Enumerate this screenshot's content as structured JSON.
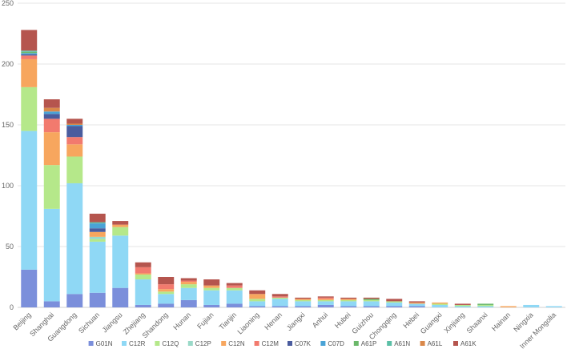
{
  "chart_data": {
    "type": "bar",
    "stacked": true,
    "title": "",
    "xlabel": "",
    "ylabel": "",
    "ylim": [
      0,
      250
    ],
    "yticks": [
      0,
      50,
      100,
      150,
      200,
      250
    ],
    "grid": true,
    "legend_position": "bottom",
    "categories": [
      "Beijing",
      "Shanghai",
      "Guangdong",
      "Sichuan",
      "Jiangsu",
      "Zhejiang",
      "Shandong",
      "Hunan",
      "Fujian",
      "Tianjin",
      "Liaoning",
      "Henan",
      "Jiangxi",
      "Anhui",
      "Hubei",
      "Guizhou",
      "Chongqing",
      "Hebei",
      "Guangxi",
      "Xinjiang",
      "Shaanxi",
      "Hainan",
      "Ningxia",
      "Inner Mongolia"
    ],
    "series": [
      {
        "name": "G01N",
        "color": "#7b8fdb",
        "values": [
          31,
          5,
          11,
          12,
          16,
          2,
          3,
          6,
          2,
          3,
          1,
          1,
          1,
          2,
          1,
          1,
          1,
          1,
          0,
          0,
          0,
          0,
          0,
          0
        ]
      },
      {
        "name": "C12R",
        "color": "#8fd8f5",
        "values": [
          114,
          76,
          91,
          42,
          43,
          21,
          8,
          10,
          12,
          11,
          4,
          6,
          4,
          3,
          4,
          4,
          3,
          2,
          2,
          1,
          1,
          0,
          2,
          1
        ]
      },
      {
        "name": "C12Q",
        "color": "#b5e88a",
        "values": [
          36,
          36,
          22,
          2,
          7,
          4,
          2,
          3,
          2,
          2,
          2,
          1,
          1,
          1,
          1,
          1,
          1,
          0,
          1,
          1,
          1,
          0,
          0,
          0
        ]
      },
      {
        "name": "C12P",
        "color": "#9ad9c8",
        "values": [
          0,
          0,
          0,
          2,
          0,
          0,
          0,
          0,
          0,
          0,
          0,
          0,
          0,
          0,
          0,
          0,
          0,
          0,
          0,
          0,
          0,
          0,
          0,
          0
        ]
      },
      {
        "name": "C12N",
        "color": "#f7a65e",
        "values": [
          23,
          27,
          10,
          4,
          2,
          1,
          2,
          2,
          2,
          0,
          4,
          0,
          1,
          1,
          1,
          0,
          0,
          1,
          1,
          0,
          0,
          1,
          0,
          0
        ]
      },
      {
        "name": "C12M",
        "color": "#f27a6e",
        "values": [
          3,
          11,
          6,
          0,
          0,
          5,
          4,
          1,
          0,
          2,
          0,
          1,
          0,
          1,
          0,
          0,
          0,
          0,
          0,
          0,
          0,
          0,
          0,
          0
        ]
      },
      {
        "name": "C07K",
        "color": "#4a5c9e",
        "values": [
          1,
          4,
          9,
          3,
          0,
          0,
          0,
          0,
          0,
          0,
          0,
          0,
          0,
          0,
          0,
          0,
          0,
          0,
          0,
          0,
          0,
          0,
          0,
          0
        ]
      },
      {
        "name": "C07D",
        "color": "#4aa3d6",
        "values": [
          1,
          2,
          1,
          4,
          0,
          0,
          0,
          0,
          0,
          0,
          0,
          0,
          0,
          0,
          0,
          0,
          0,
          0,
          0,
          0,
          0,
          0,
          0,
          0
        ]
      },
      {
        "name": "A61P",
        "color": "#6bb86a",
        "values": [
          1,
          0,
          0,
          0,
          0,
          0,
          0,
          0,
          0,
          0,
          0,
          0,
          0,
          0,
          0,
          1,
          0,
          0,
          0,
          0,
          1,
          0,
          0,
          0
        ]
      },
      {
        "name": "A61N",
        "color": "#5bbfa6",
        "values": [
          1,
          0,
          0,
          1,
          0,
          0,
          0,
          0,
          0,
          0,
          0,
          0,
          0,
          0,
          0,
          0,
          0,
          0,
          0,
          0,
          0,
          0,
          0,
          0
        ]
      },
      {
        "name": "A61L",
        "color": "#d9884a",
        "values": [
          0,
          3,
          1,
          0,
          0,
          0,
          0,
          0,
          0,
          0,
          0,
          0,
          0,
          0,
          0,
          0,
          0,
          0,
          0,
          0,
          0,
          0,
          0,
          0
        ]
      },
      {
        "name": "A61K",
        "color": "#b5554e",
        "values": [
          17,
          7,
          4,
          7,
          3,
          4,
          6,
          2,
          5,
          2,
          3,
          2,
          1,
          1,
          1,
          1,
          2,
          1,
          0,
          1,
          0,
          0,
          0,
          0
        ]
      }
    ]
  }
}
